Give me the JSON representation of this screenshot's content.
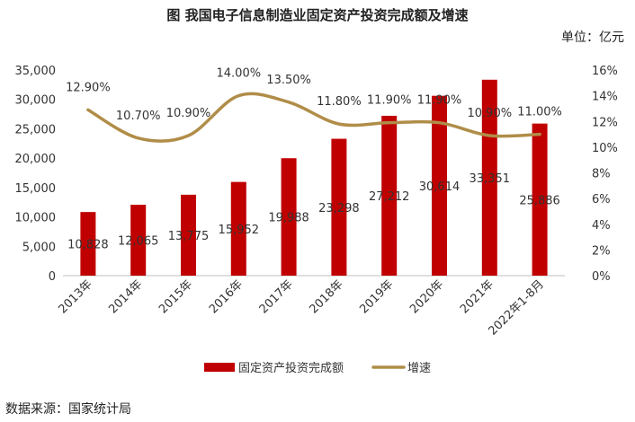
{
  "header": {
    "title": "图  我国电子信息制造业固定资产投资完成额及增速",
    "unit": "单位：亿元"
  },
  "footer": {
    "source": "数据来源：国家统计局"
  },
  "chart_data": {
    "type": "bar",
    "title": "图  我国电子信息制造业固定资产投资完成额及增速",
    "categories": [
      "2013年",
      "2014年",
      "2015年",
      "2016年",
      "2017年",
      "2018年",
      "2019年",
      "2020年",
      "2021年",
      "2022年1-8月"
    ],
    "series": [
      {
        "name": "固定资产投资完成额",
        "type": "bar",
        "axis": "left",
        "color": "#c00000",
        "values": [
          10828,
          12065,
          13775,
          15952,
          19988,
          23298,
          27212,
          30614,
          33351,
          25886
        ],
        "labels": [
          "10,828",
          "12,065",
          "13,775",
          "15,952",
          "19,988",
          "23,298",
          "27,212",
          "30,614",
          "33,351",
          "25,886"
        ]
      },
      {
        "name": "增速",
        "type": "line",
        "axis": "right",
        "color": "#b08d48",
        "values": [
          12.9,
          10.7,
          10.9,
          14.0,
          13.5,
          11.8,
          11.9,
          11.9,
          10.9,
          11.0
        ],
        "labels": [
          "12.90%",
          "10.70%",
          "10.90%",
          "14.00%",
          "13.50%",
          "11.80%",
          "11.90%",
          "11.90%",
          "10.90%",
          "11.00%"
        ]
      }
    ],
    "left_axis": {
      "ylim": [
        0,
        35000
      ],
      "ticks": [
        0,
        5000,
        10000,
        15000,
        20000,
        25000,
        30000,
        35000
      ],
      "tick_labels": [
        "0",
        "5,000",
        "10,000",
        "15,000",
        "20,000",
        "25,000",
        "30,000",
        "35,000"
      ]
    },
    "right_axis": {
      "ylim": [
        0,
        16
      ],
      "ticks": [
        0,
        2,
        4,
        6,
        8,
        10,
        12,
        14,
        16
      ],
      "tick_labels": [
        "0%",
        "2%",
        "4%",
        "6%",
        "8%",
        "10%",
        "12%",
        "14%",
        "16%"
      ]
    },
    "legend": {
      "position": "bottom",
      "entries": [
        "固定资产投资完成额",
        "增速"
      ]
    },
    "grid": false
  }
}
